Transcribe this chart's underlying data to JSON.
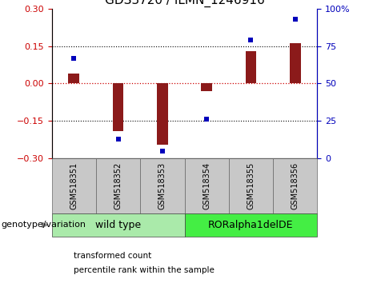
{
  "title": "GDS3720 / ILMN_1246916",
  "samples": [
    "GSM518351",
    "GSM518352",
    "GSM518353",
    "GSM518354",
    "GSM518355",
    "GSM518356"
  ],
  "transformed_count": [
    0.04,
    -0.19,
    -0.245,
    -0.03,
    0.13,
    0.16
  ],
  "percentile_rank": [
    67,
    13,
    5,
    26,
    79,
    93
  ],
  "groups": [
    {
      "label": "wild type",
      "start": 0,
      "end": 3,
      "color": "#AAEAAA"
    },
    {
      "label": "RORalpha1delDE",
      "start": 3,
      "end": 6,
      "color": "#44EE44"
    }
  ],
  "ylim_left": [
    -0.3,
    0.3
  ],
  "ylim_right": [
    0,
    100
  ],
  "yticks_left": [
    -0.3,
    -0.15,
    0.0,
    0.15,
    0.3
  ],
  "yticks_right": [
    0,
    25,
    50,
    75,
    100
  ],
  "ytick_labels_right": [
    "0",
    "25",
    "50",
    "75",
    "100%"
  ],
  "hlines_dotted": [
    -0.15,
    0.15
  ],
  "hline_red": 0.0,
  "bar_color": "#8B1A1A",
  "dot_color": "#0000BB",
  "bar_width": 0.25,
  "dot_size": 18,
  "legend_items": [
    {
      "label": "transformed count",
      "color": "#CC2222"
    },
    {
      "label": "percentile rank within the sample",
      "color": "#0000BB"
    }
  ],
  "group_label": "genotype/variation",
  "title_fontsize": 11,
  "tick_fontsize": 8,
  "label_fontsize": 8,
  "group_fontsize": 9,
  "sample_box_color": "#C8C8C8"
}
